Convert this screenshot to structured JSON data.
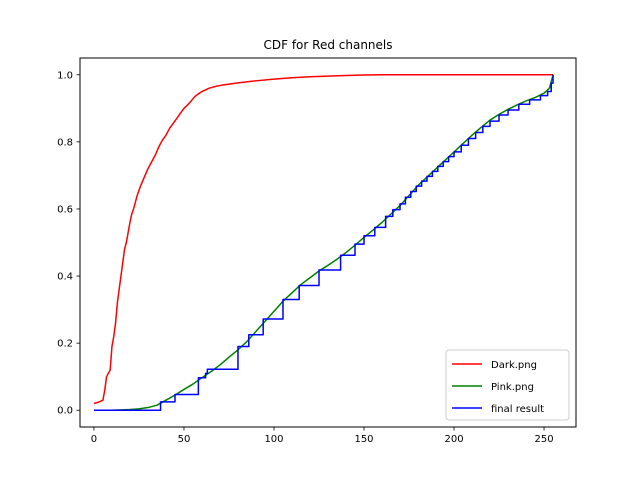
{
  "chart_data": {
    "type": "line",
    "title": "CDF for Red channels",
    "xlabel": "",
    "ylabel": "",
    "xlim": [
      -7.75,
      267.75
    ],
    "ylim": [
      -0.05,
      1.05
    ],
    "xticks": [
      0,
      50,
      100,
      150,
      200,
      250
    ],
    "yticks": [
      0.0,
      0.2,
      0.4,
      0.6,
      0.8,
      1.0
    ],
    "xtick_labels": [
      "0",
      "50",
      "100",
      "150",
      "200",
      "250"
    ],
    "ytick_labels": [
      "0.0",
      "0.2",
      "0.4",
      "0.6",
      "0.8",
      "1.0"
    ],
    "grid": false,
    "legend_position": "lower-right",
    "series": [
      {
        "name": "Dark.png",
        "color": "#ff0000",
        "points": [
          [
            0,
            0.02
          ],
          [
            3,
            0.025
          ],
          [
            5,
            0.03
          ],
          [
            6,
            0.06
          ],
          [
            7,
            0.1
          ],
          [
            8,
            0.11
          ],
          [
            9,
            0.12
          ],
          [
            10,
            0.19
          ],
          [
            11,
            0.22
          ],
          [
            12,
            0.26
          ],
          [
            13,
            0.32
          ],
          [
            14,
            0.36
          ],
          [
            15,
            0.4
          ],
          [
            16,
            0.44
          ],
          [
            17,
            0.48
          ],
          [
            18,
            0.5
          ],
          [
            19,
            0.53
          ],
          [
            20,
            0.56
          ],
          [
            21,
            0.585
          ],
          [
            22,
            0.6
          ],
          [
            24,
            0.64
          ],
          [
            26,
            0.67
          ],
          [
            28,
            0.695
          ],
          [
            30,
            0.72
          ],
          [
            32,
            0.74
          ],
          [
            34,
            0.76
          ],
          [
            36,
            0.785
          ],
          [
            38,
            0.805
          ],
          [
            40,
            0.82
          ],
          [
            42,
            0.84
          ],
          [
            44,
            0.855
          ],
          [
            46,
            0.87
          ],
          [
            48,
            0.885
          ],
          [
            50,
            0.9
          ],
          [
            52,
            0.91
          ],
          [
            54,
            0.922
          ],
          [
            56,
            0.935
          ],
          [
            58,
            0.943
          ],
          [
            60,
            0.95
          ],
          [
            64,
            0.96
          ],
          [
            68,
            0.966
          ],
          [
            72,
            0.97
          ],
          [
            80,
            0.976
          ],
          [
            90,
            0.982
          ],
          [
            100,
            0.987
          ],
          [
            110,
            0.991
          ],
          [
            120,
            0.994
          ],
          [
            130,
            0.996
          ],
          [
            140,
            0.998
          ],
          [
            150,
            0.9995
          ],
          [
            160,
            1.0
          ],
          [
            200,
            1.0
          ],
          [
            255,
            1.0
          ]
        ]
      },
      {
        "name": "Pink.png",
        "color": "#008000",
        "points": [
          [
            0,
            0.0
          ],
          [
            10,
            0.0
          ],
          [
            20,
            0.002
          ],
          [
            25,
            0.004
          ],
          [
            30,
            0.008
          ],
          [
            35,
            0.015
          ],
          [
            40,
            0.03
          ],
          [
            45,
            0.045
          ],
          [
            50,
            0.062
          ],
          [
            55,
            0.078
          ],
          [
            60,
            0.097
          ],
          [
            65,
            0.115
          ],
          [
            70,
            0.135
          ],
          [
            75,
            0.158
          ],
          [
            80,
            0.18
          ],
          [
            85,
            0.205
          ],
          [
            90,
            0.235
          ],
          [
            95,
            0.265
          ],
          [
            100,
            0.295
          ],
          [
            105,
            0.325
          ],
          [
            110,
            0.35
          ],
          [
            115,
            0.375
          ],
          [
            120,
            0.395
          ],
          [
            125,
            0.415
          ],
          [
            130,
            0.432
          ],
          [
            135,
            0.45
          ],
          [
            140,
            0.47
          ],
          [
            145,
            0.492
          ],
          [
            150,
            0.515
          ],
          [
            155,
            0.537
          ],
          [
            160,
            0.56
          ],
          [
            165,
            0.585
          ],
          [
            170,
            0.61
          ],
          [
            175,
            0.64
          ],
          [
            180,
            0.67
          ],
          [
            185,
            0.695
          ],
          [
            190,
            0.72
          ],
          [
            195,
            0.745
          ],
          [
            200,
            0.77
          ],
          [
            205,
            0.795
          ],
          [
            210,
            0.82
          ],
          [
            215,
            0.843
          ],
          [
            220,
            0.865
          ],
          [
            225,
            0.882
          ],
          [
            230,
            0.897
          ],
          [
            235,
            0.91
          ],
          [
            240,
            0.922
          ],
          [
            245,
            0.932
          ],
          [
            250,
            0.945
          ],
          [
            253,
            0.96
          ],
          [
            255,
            1.0
          ]
        ]
      },
      {
        "name": "final result",
        "color": "#0000ff",
        "points": [
          [
            0,
            0.0
          ],
          [
            37,
            0.0
          ],
          [
            37,
            0.025
          ],
          [
            45,
            0.025
          ],
          [
            45,
            0.047
          ],
          [
            58,
            0.047
          ],
          [
            58,
            0.097
          ],
          [
            62,
            0.097
          ],
          [
            62,
            0.11
          ],
          [
            63,
            0.11
          ],
          [
            63,
            0.122
          ],
          [
            80,
            0.122
          ],
          [
            80,
            0.19
          ],
          [
            86,
            0.19
          ],
          [
            86,
            0.225
          ],
          [
            94,
            0.225
          ],
          [
            94,
            0.272
          ],
          [
            105,
            0.272
          ],
          [
            105,
            0.33
          ],
          [
            114,
            0.33
          ],
          [
            114,
            0.372
          ],
          [
            125,
            0.372
          ],
          [
            125,
            0.418
          ],
          [
            137,
            0.418
          ],
          [
            137,
            0.462
          ],
          [
            145,
            0.462
          ],
          [
            145,
            0.495
          ],
          [
            150,
            0.495
          ],
          [
            150,
            0.52
          ],
          [
            156,
            0.52
          ],
          [
            156,
            0.545
          ],
          [
            162,
            0.545
          ],
          [
            162,
            0.578
          ],
          [
            166,
            0.578
          ],
          [
            166,
            0.598
          ],
          [
            170,
            0.598
          ],
          [
            170,
            0.615
          ],
          [
            173,
            0.615
          ],
          [
            173,
            0.635
          ],
          [
            176,
            0.635
          ],
          [
            176,
            0.652
          ],
          [
            179,
            0.652
          ],
          [
            179,
            0.668
          ],
          [
            182,
            0.668
          ],
          [
            182,
            0.683
          ],
          [
            185,
            0.683
          ],
          [
            185,
            0.697
          ],
          [
            188,
            0.697
          ],
          [
            188,
            0.712
          ],
          [
            191,
            0.712
          ],
          [
            191,
            0.727
          ],
          [
            194,
            0.727
          ],
          [
            194,
            0.741
          ],
          [
            197,
            0.741
          ],
          [
            197,
            0.756
          ],
          [
            200,
            0.756
          ],
          [
            200,
            0.77
          ],
          [
            204,
            0.77
          ],
          [
            204,
            0.79
          ],
          [
            208,
            0.79
          ],
          [
            208,
            0.81
          ],
          [
            212,
            0.81
          ],
          [
            212,
            0.828
          ],
          [
            216,
            0.828
          ],
          [
            216,
            0.846
          ],
          [
            220,
            0.846
          ],
          [
            220,
            0.862
          ],
          [
            225,
            0.862
          ],
          [
            225,
            0.88
          ],
          [
            230,
            0.88
          ],
          [
            230,
            0.895
          ],
          [
            236,
            0.895
          ],
          [
            236,
            0.912
          ],
          [
            242,
            0.912
          ],
          [
            242,
            0.925
          ],
          [
            248,
            0.925
          ],
          [
            248,
            0.938
          ],
          [
            252,
            0.938
          ],
          [
            252,
            0.95
          ],
          [
            254,
            0.95
          ],
          [
            254,
            0.975
          ],
          [
            255,
            0.975
          ],
          [
            255,
            1.0
          ]
        ]
      }
    ]
  }
}
